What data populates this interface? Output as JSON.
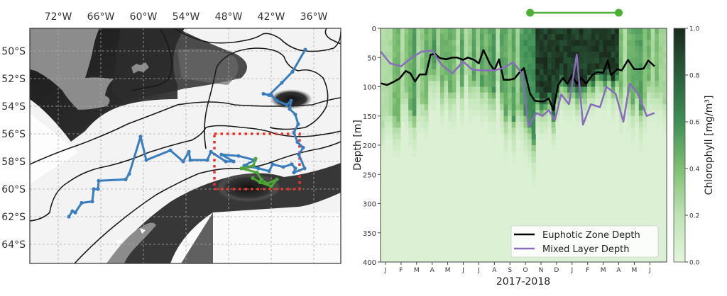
{
  "chart_data": [
    {
      "type": "map",
      "title": "",
      "longitude_ticks": [
        "72°W",
        "66°W",
        "60°W",
        "54°W",
        "48°W",
        "42°W",
        "36°W"
      ],
      "latitude_ticks": [
        "50°S",
        "52°S",
        "54°S",
        "56°S",
        "58°S",
        "60°S",
        "62°S",
        "64°S"
      ],
      "lon_range": [
        -75,
        -31
      ],
      "lat_range": [
        -66,
        -48.5
      ],
      "grid": true,
      "colors": {
        "track_blue": "#3a7dbd",
        "track_green": "#4ca535",
        "box_red": "#e8352b",
        "contour": "#1a1a1a",
        "land": "#8c8c8c"
      },
      "series": [
        {
          "name": "Float track (blue)",
          "color": "#3a7dbd",
          "points": [
            [
              -70.5,
              -62.0
            ],
            [
              -70.0,
              -61.6
            ],
            [
              -69.6,
              -61.7
            ],
            [
              -68.7,
              -61.0
            ],
            [
              -67.2,
              -60.9
            ],
            [
              -67.0,
              -60.0
            ],
            [
              -66.4,
              -60.0
            ],
            [
              -66.3,
              -59.4
            ],
            [
              -62.5,
              -59.3
            ],
            [
              -62.0,
              -58.9
            ],
            [
              -60.4,
              -56.2
            ],
            [
              -59.6,
              -57.9
            ],
            [
              -56.2,
              -57.2
            ],
            [
              -54.4,
              -58.0
            ],
            [
              -53.6,
              -57.3
            ],
            [
              -53.4,
              -57.9
            ],
            [
              -51.0,
              -57.9
            ],
            [
              -50.5,
              -57.3
            ],
            [
              -48.4,
              -58.0
            ],
            [
              -47.3,
              -58.0
            ],
            [
              -49.0,
              -57.5
            ],
            [
              -46.6,
              -57.6
            ],
            [
              -44.3,
              -57.9
            ],
            [
              -45.8,
              -58.3
            ],
            [
              -43.8,
              -58.5
            ],
            [
              -42.3,
              -58.7
            ],
            [
              -41.8,
              -58.2
            ],
            [
              -40.3,
              -58.4
            ],
            [
              -39.1,
              -58.2
            ],
            [
              -38.6,
              -58.5
            ],
            [
              -38.8,
              -58.8
            ],
            [
              -37.3,
              -58.5
            ],
            [
              -38.1,
              -57.5
            ],
            [
              -37.5,
              -57.0
            ],
            [
              -38.3,
              -56.6
            ],
            [
              -38.8,
              -55.9
            ],
            [
              -38.2,
              -55.3
            ],
            [
              -38.6,
              -54.6
            ],
            [
              -39.4,
              -54.2
            ],
            [
              -39.2,
              -53.6
            ],
            [
              -39.8,
              -53.9
            ],
            [
              -41.2,
              -53.6
            ],
            [
              -42.0,
              -53.2
            ],
            [
              -43.1,
              -53.1
            ],
            [
              -42.3,
              -53.2
            ],
            [
              -40.5,
              -52.3
            ],
            [
              -39.0,
              -51.5
            ],
            [
              -37.2,
              -49.9
            ]
          ]
        },
        {
          "name": "Float track (green)",
          "color": "#4ca535",
          "points": [
            [
              -44.2,
              -57.8
            ],
            [
              -44.5,
              -58.3
            ],
            [
              -46.2,
              -58.5
            ],
            [
              -44.0,
              -58.8
            ],
            [
              -43.4,
              -59.3
            ],
            [
              -42.5,
              -59.6
            ],
            [
              -41.2,
              -59.3
            ],
            [
              -42.0,
              -59.8
            ],
            [
              -43.6,
              -59.5
            ],
            [
              -44.6,
              -59.2
            ]
          ]
        }
      ],
      "annotations": [
        "red dotted study-region box approx. 50°W–38°W, 56°S–60°S"
      ]
    },
    {
      "type": "heatmap",
      "title": "",
      "xlabel": "2017-2018",
      "ylabel": "Depth [m]",
      "ylim": [
        400,
        0
      ],
      "yticks": [
        0,
        50,
        100,
        150,
        200,
        250,
        300,
        350,
        400
      ],
      "xticks": [
        "J",
        "F",
        "M",
        "A",
        "M",
        "J",
        "J",
        "A",
        "S",
        "O",
        "N",
        "D",
        "J",
        "F",
        "M",
        "A",
        "M",
        "J"
      ],
      "colorbar": {
        "label": "Chlorophyll [mg/m³]",
        "range": [
          0.0,
          1.0
        ],
        "ticks": [
          "0.0",
          "0.2",
          "0.4",
          "0.6",
          "0.8",
          "1.0"
        ],
        "colormap": "Greens"
      },
      "legend": {
        "placement": "lower-right",
        "entries": [
          "Euphotic Zone Depth",
          "Mixed Layer Depth"
        ]
      },
      "time_range_bar": {
        "start_month_index": 9.3,
        "end_month_index": 15.0,
        "color": "#4caf33"
      },
      "series": [
        {
          "name": "Euphotic Zone Depth",
          "color": "#000000",
          "month_index": [
            -0.3,
            0.1,
            0.5,
            0.9,
            1.3,
            1.6,
            1.9,
            2.2,
            2.6,
            2.9,
            3.2,
            3.5,
            3.9,
            4.3,
            4.6,
            5.0,
            5.3,
            5.7,
            6.0,
            6.3,
            6.7,
            7.0,
            7.3,
            7.6,
            8.0,
            8.3,
            8.6,
            8.9,
            9.3,
            9.6,
            9.9,
            10.2,
            10.5,
            10.8,
            11.1,
            11.4,
            11.7,
            12.0,
            12.3,
            12.6,
            12.9,
            13.3,
            13.6,
            14.0,
            14.3,
            14.5,
            14.9,
            15.2,
            15.6,
            16.0,
            16.3,
            16.6,
            16.9,
            17.3
          ],
          "depth": [
            94,
            97,
            92,
            86,
            73,
            77,
            91,
            79,
            79,
            45,
            44,
            51,
            53,
            50,
            50,
            54,
            50,
            54,
            60,
            37,
            60,
            72,
            53,
            88,
            88,
            86,
            76,
            68,
            112,
            124,
            125,
            125,
            120,
            140,
            97,
            85,
            95,
            80,
            95,
            85,
            95,
            80,
            75,
            76,
            55,
            80,
            70,
            72,
            54,
            70,
            70,
            69,
            55,
            65
          ]
        },
        {
          "name": "Mixed Layer Depth",
          "color": "#8a6bbd",
          "month_index": [
            -0.3,
            0.3,
            1.0,
            1.6,
            2.3,
            3.0,
            3.6,
            4.3,
            5.0,
            5.6,
            6.3,
            7.0,
            7.6,
            8.2,
            8.8,
            9.2,
            9.7,
            10.1,
            10.5,
            10.9,
            11.3,
            11.8,
            12.3,
            12.7,
            13.2,
            13.8,
            14.2,
            14.8,
            15.3,
            15.7,
            16.2,
            16.8,
            17.3
          ],
          "depth": [
            40,
            60,
            65,
            52,
            40,
            38,
            62,
            77,
            57,
            71,
            72,
            72,
            68,
            58,
            78,
            168,
            145,
            150,
            140,
            157,
            113,
            130,
            45,
            165,
            130,
            135,
            100,
            112,
            160,
            95,
            110,
            150,
            145
          ]
        }
      ]
    }
  ],
  "ui": {
    "colorbar_label": "Chlorophyll [mg/m³]",
    "ylabel": "Depth [m]",
    "xlabel": "2017-2018"
  }
}
